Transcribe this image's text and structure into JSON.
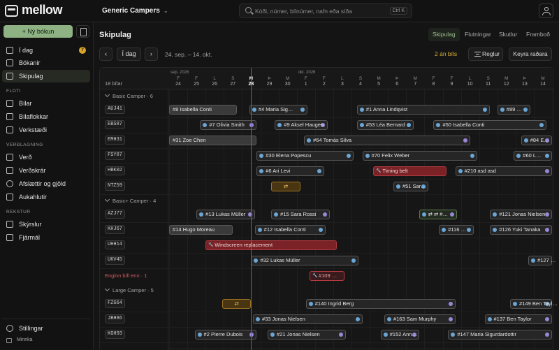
{
  "app": {
    "logo_text": "mellow"
  },
  "header": {
    "workspace": "Generic Campers",
    "search_placeholder": "Kóði, númer, bílnúmer, nafn eða síða",
    "search_shortcut": "Ctrl K"
  },
  "sidebar": {
    "new_booking": "+ Ný bókun",
    "items_top": [
      {
        "label": "Í dag",
        "badge": "7"
      },
      {
        "label": "Bókanir"
      },
      {
        "label": "Skipulag"
      }
    ],
    "section_floti": "FLOTI",
    "items_floti": [
      {
        "label": "Bílar"
      },
      {
        "label": "Bílaflokkar"
      },
      {
        "label": "Verkstæði"
      }
    ],
    "section_verdlagning": "VERÐLAGNING",
    "items_verdlagning": [
      {
        "label": "Verð"
      },
      {
        "label": "Verðskrár"
      },
      {
        "label": "Afslættir og gjöld"
      },
      {
        "label": "Aukahlutir"
      }
    ],
    "section_rekstur": "REKSTUR",
    "items_rekstur": [
      {
        "label": "Skýrslur"
      },
      {
        "label": "Fjármál"
      }
    ],
    "settings": "Stillingar",
    "collapse": "Minnka"
  },
  "page": {
    "title": "Skipulag",
    "view_tabs": [
      "Skipulag",
      "Flutningar",
      "Skutlur",
      "Framboð"
    ],
    "today_button": "Í dag",
    "date_range": "24. sep. – 14. okt.",
    "unassigned_count": "2 án bíls",
    "rules_button": "Reglur",
    "allocate_button": "Keyra raðara"
  },
  "grid": {
    "cars_count": "18 bílar",
    "months": [
      {
        "label": "sep. 2026"
      },
      {
        "label": "okt. 2026"
      }
    ],
    "days": [
      {
        "w": "F",
        "d": "24"
      },
      {
        "w": "F",
        "d": "25"
      },
      {
        "w": "L",
        "d": "26"
      },
      {
        "w": "S",
        "d": "27"
      },
      {
        "w": "M",
        "d": "28",
        "today": true
      },
      {
        "w": "Þ",
        "d": "29"
      },
      {
        "w": "M",
        "d": "30"
      },
      {
        "w": "F",
        "d": "1"
      },
      {
        "w": "F",
        "d": "2"
      },
      {
        "w": "L",
        "d": "3"
      },
      {
        "w": "S",
        "d": "4"
      },
      {
        "w": "M",
        "d": "5"
      },
      {
        "w": "Þ",
        "d": "6"
      },
      {
        "w": "M",
        "d": "7"
      },
      {
        "w": "F",
        "d": "8"
      },
      {
        "w": "F",
        "d": "9"
      },
      {
        "w": "L",
        "d": "10"
      },
      {
        "w": "S",
        "d": "11"
      },
      {
        "w": "M",
        "d": "12"
      },
      {
        "w": "Þ",
        "d": "13"
      },
      {
        "w": "M",
        "d": "14"
      }
    ],
    "groups": [
      {
        "label": "Basic Camper · 6",
        "cars": [
          {
            "plate": "AUJ41",
            "bookings": [
              {
                "text": "#8 Isabella Conti",
                "style": "solid",
                "start": 0,
                "end": 3.7
              },
              {
                "text": "#4 Maria Sig…",
                "start": 4.4,
                "end": 7.6
              },
              {
                "text": "#1 Anna Lindqvist",
                "start": 10.3,
                "end": 17.6
              },
              {
                "text": "#89 …",
                "start": 18,
                "end": 19.8
              }
            ]
          },
          {
            "plate": "EBS87",
            "bookings": [
              {
                "text": "#7 Olivia Smith",
                "start": 1.7,
                "end": 4.8
              },
              {
                "text": "#9 Aksel Haugen",
                "start": 5.8,
                "end": 8.7
              },
              {
                "text": "#53 Léa Bernard",
                "start": 10.3,
                "end": 13.4
              },
              {
                "text": "#50 Isabella Conti",
                "start": 14.5,
                "end": 20.7
              }
            ]
          },
          {
            "plate": "EMH31",
            "bookings": [
              {
                "text": "#31 Zoe Chen",
                "style": "solid",
                "start": 0,
                "end": 4.8
              },
              {
                "text": "#64 Tomás Silva",
                "start": 7.4,
                "end": 16.5
              },
              {
                "text": "#84 E…",
                "start": 19.3,
                "end": 21
              }
            ]
          },
          {
            "plate": "FSY87",
            "bookings": [
              {
                "text": "#30 Elena Popescu",
                "start": 4.8,
                "end": 10.1
              },
              {
                "text": "#70 Felix Weber",
                "start": 10.6,
                "end": 16.9
              },
              {
                "text": "#60 L…",
                "start": 18.9,
                "end": 21
              }
            ]
          },
          {
            "plate": "HBK02",
            "bookings": [
              {
                "text": "#6 Ari Levi",
                "start": 4.8,
                "end": 8.5
              },
              {
                "text": "Timing belt",
                "style": "red",
                "start": 11.2,
                "end": 15.2
              },
              {
                "text": "#210 asd asd",
                "start": 15.7,
                "end": 21
              }
            ]
          },
          {
            "plate": "NTZ59",
            "bookings": [
              {
                "text": "⇄",
                "style": "orange",
                "start": 5.6,
                "end": 7.2
              },
              {
                "text": "#51 Sar…",
                "start": 12.3,
                "end": 14.2
              }
            ]
          }
        ]
      },
      {
        "label": "Basic+ Camper · 4",
        "cars": [
          {
            "plate": "AZJ77",
            "bookings": [
              {
                "text": "#13 Lukas Müller",
                "start": 1.5,
                "end": 4.7
              },
              {
                "text": "#15 Sara Rossi",
                "start": 5.6,
                "end": 8.8
              },
              {
                "text": "⇄ ⇄ #…",
                "style": "green",
                "start": 13.7,
                "end": 15.8
              },
              {
                "text": "#121 Jonas Nielsen",
                "start": 17.6,
                "end": 21
              }
            ]
          },
          {
            "plate": "KHJ67",
            "bookings": [
              {
                "text": "#14 Hugo Moreau",
                "style": "solid",
                "start": 0,
                "end": 3.5
              },
              {
                "text": "#12 Isabella Conti",
                "start": 4.7,
                "end": 8.6
              },
              {
                "text": "#116 …",
                "start": 14.8,
                "end": 16.7
              },
              {
                "text": "#126 Yuki Tanaka",
                "start": 17.6,
                "end": 21
              }
            ]
          },
          {
            "plate": "UHH14",
            "bookings": [
              {
                "text": "Windscreen replacement",
                "style": "red",
                "start": 2.0,
                "end": 9.2
              }
            ]
          },
          {
            "plate": "UKV45",
            "bookings": [
              {
                "text": "#32 Lukas Müller",
                "start": 4.5,
                "end": 10.4
              },
              {
                "text": "#127 …",
                "start": 19.7,
                "end": 21
              }
            ]
          }
        ]
      }
    ],
    "unassigned_row": {
      "label": "Enginn bíll enn · 1",
      "bookings": [
        {
          "text": "#109 …",
          "style": "red-outline",
          "start": 7.7,
          "end": 9.6
        }
      ]
    },
    "groups_after": [
      {
        "label": "Large Camper · 5",
        "cars": [
          {
            "plate": "FZG64",
            "bookings": [
              {
                "text": "⇄",
                "style": "orange",
                "start": 2.9,
                "end": 4.5
              },
              {
                "text": "#140 Ingrid Berg",
                "start": 7.5,
                "end": 15.7
              },
              {
                "text": "#149 Ben Tayl…",
                "start": 18.7,
                "end": 21
              }
            ]
          },
          {
            "plate": "JBH86",
            "bookings": [
              {
                "text": "#33 Jonas Nielsen",
                "start": 4.6,
                "end": 10.6
              },
              {
                "text": "#163 Sam Murphy",
                "start": 11.8,
                "end": 15.7
              },
              {
                "text": "#137 Ben Taylor",
                "start": 17.3,
                "end": 21
              }
            ]
          },
          {
            "plate": "KGH93",
            "bookings": [
              {
                "text": "#2 Pierre Dubois",
                "start": 1.4,
                "end": 4.8
              },
              {
                "text": "#21 Jonas Nielsen",
                "start": 5.4,
                "end": 9.7
              },
              {
                "text": "#152 Ann…",
                "start": 11.6,
                "end": 13.7
              },
              {
                "text": "#147 Maria Sigurdardottir",
                "start": 15.3,
                "end": 21
              }
            ]
          }
        ]
      }
    ]
  }
}
